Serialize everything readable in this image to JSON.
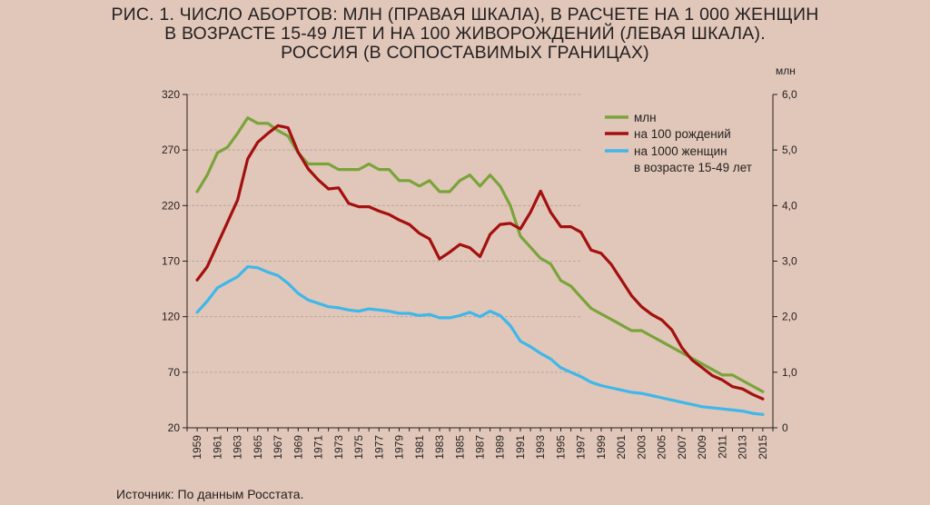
{
  "title_lines": [
    "РИС. 1. ЧИСЛО АБОРТОВ: МЛН (ПРАВАЯ ШКАЛА), В РАСЧЕТЕ НА 1 000 ЖЕНЩИН",
    "В ВОЗРАСТЕ 15-49 ЛЕТ И НА 100 ЖИВОРОЖДЕНИЙ (ЛЕВАЯ ШКАЛА).",
    "РОССИЯ (В СОПОСТАВИМЫХ ГРАНИЦАХ)"
  ],
  "source": "Источник: По данным Росстата.",
  "colors": {
    "background": "#e1c7b9",
    "mln": "#7aa43b",
    "per100births": "#a3100f",
    "per1000women": "#3fb7ea",
    "axis": "#231f20",
    "grid": "#b9a79b"
  },
  "chart_data": {
    "type": "line",
    "right_axis_label": "млн",
    "left_axis": {
      "ylim": [
        20,
        320
      ],
      "ticks": [
        "20",
        "70",
        "120",
        "170",
        "220",
        "270",
        "320"
      ]
    },
    "right_axis": {
      "ylim": [
        0,
        6
      ],
      "ticks": [
        "0",
        "1,0",
        "2,0",
        "3,0",
        "4,0",
        "5,0",
        "6,0"
      ]
    },
    "x_tick_labels": [
      "1959",
      "1961",
      "1963",
      "1965",
      "1967",
      "1969",
      "1971",
      "1973",
      "1975",
      "1977",
      "1979",
      "1981",
      "1983",
      "1985",
      "1987",
      "1989",
      "1991",
      "1993",
      "1995",
      "1997",
      "1999",
      "2001",
      "2003",
      "2005",
      "2007",
      "2009",
      "2011",
      "2013",
      "2015"
    ],
    "x": [
      1959,
      1960,
      1961,
      1962,
      1963,
      1964,
      1965,
      1966,
      1967,
      1968,
      1969,
      1970,
      1971,
      1972,
      1973,
      1974,
      1975,
      1976,
      1977,
      1978,
      1979,
      1980,
      1981,
      1982,
      1983,
      1984,
      1985,
      1986,
      1987,
      1988,
      1989,
      1990,
      1991,
      1992,
      1993,
      1994,
      1995,
      1996,
      1997,
      1998,
      1999,
      2000,
      2001,
      2002,
      2003,
      2004,
      2005,
      2006,
      2007,
      2008,
      2009,
      2010,
      2011,
      2012,
      2013,
      2014,
      2015
    ],
    "series": [
      {
        "name": "млн",
        "axis": "right",
        "color_key": "mln",
        "values": [
          4.25,
          4.55,
          4.95,
          5.05,
          5.3,
          5.58,
          5.48,
          5.48,
          5.35,
          5.25,
          4.95,
          4.75,
          4.75,
          4.75,
          4.65,
          4.65,
          4.65,
          4.75,
          4.65,
          4.65,
          4.45,
          4.45,
          4.35,
          4.45,
          4.25,
          4.25,
          4.45,
          4.55,
          4.35,
          4.55,
          4.35,
          4.0,
          3.45,
          3.25,
          3.05,
          2.95,
          2.65,
          2.55,
          2.35,
          2.15,
          2.05,
          1.95,
          1.85,
          1.75,
          1.75,
          1.65,
          1.55,
          1.45,
          1.35,
          1.25,
          1.15,
          1.05,
          0.95,
          0.95,
          0.85,
          0.75,
          0.65
        ]
      },
      {
        "name": "на 100 рождений",
        "axis": "left",
        "color_key": "per100births",
        "values": [
          153,
          165,
          185,
          205,
          225,
          262,
          277,
          285,
          292,
          290,
          268,
          253,
          243,
          235,
          236,
          222,
          219,
          219,
          215,
          212,
          207,
          203,
          195,
          190,
          172,
          178,
          185,
          182,
          174,
          194,
          203,
          204,
          199,
          214,
          233,
          214,
          201,
          201,
          196,
          180,
          177,
          167,
          153,
          139,
          129,
          122,
          117,
          108,
          92,
          81,
          74,
          67,
          63,
          57,
          55,
          50,
          46
        ]
      },
      {
        "name": "на 1000 женщин\nв возрасте 15-49 лет",
        "axis": "left",
        "color_key": "per1000women",
        "values": [
          124,
          134,
          146,
          151,
          156,
          165,
          164,
          160,
          157,
          150,
          141,
          135,
          132,
          129,
          128,
          126,
          125,
          127,
          126,
          125,
          123,
          123,
          121,
          122,
          119,
          119,
          121,
          124,
          120,
          125,
          121,
          112,
          98,
          93,
          87,
          82,
          74,
          70,
          66,
          61,
          58,
          56,
          54,
          52,
          51,
          49,
          47,
          45,
          43,
          41,
          39,
          38,
          37,
          36,
          35,
          33,
          32
        ]
      }
    ]
  }
}
